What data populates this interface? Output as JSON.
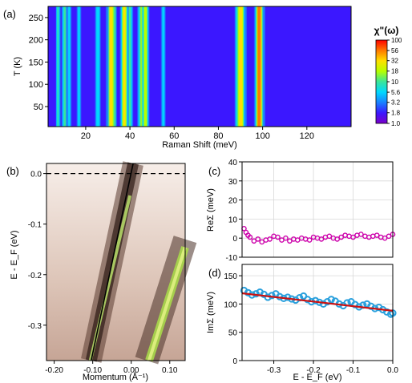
{
  "chart_data": [
    {
      "panel": "(a)",
      "type": "heatmap",
      "xlabel": "Raman Shift (meV)",
      "ylabel": "T (K)",
      "xlim": [
        3,
        140
      ],
      "ylim": [
        5,
        275
      ],
      "xticks": [
        20,
        40,
        60,
        80,
        100,
        120
      ],
      "yticks": [
        50,
        100,
        150,
        200,
        250
      ],
      "colorbar": {
        "label": "χ\"(ω)",
        "scale": "log",
        "range": [
          1.0,
          100
        ],
        "ticks": [
          "100",
          "56",
          "32",
          "18",
          "10",
          "5.6",
          "3.2",
          "1.8",
          "1.0"
        ],
        "colors": [
          "#7a00c8",
          "#3b17ff",
          "#1a80ff",
          "#00d8ff",
          "#3ae59a",
          "#b6ff00",
          "#ffe000",
          "#ff7a00",
          "#ff0000"
        ]
      },
      "background_level": 2.2,
      "dip": {
        "center": 20,
        "width": 8,
        "level": 1.3
      },
      "phonon_modes_meV": [
        {
          "x": 7.5,
          "level": 9,
          "width": 0.55
        },
        {
          "x": 10.5,
          "level": 10,
          "width": 0.6
        },
        {
          "x": 12.5,
          "level": 8,
          "width": 0.55
        },
        {
          "x": 17,
          "level": 6,
          "width": 0.5
        },
        {
          "x": 25.5,
          "level": 7,
          "width": 0.55
        },
        {
          "x": 31.5,
          "level": 40,
          "width": 0.9
        },
        {
          "x": 33,
          "level": 14,
          "width": 0.6
        },
        {
          "x": 37.5,
          "level": 30,
          "width": 0.8
        },
        {
          "x": 40,
          "level": 11,
          "width": 0.6
        },
        {
          "x": 45,
          "level": 14,
          "width": 0.7
        },
        {
          "x": 47,
          "level": 22,
          "width": 0.7
        },
        {
          "x": 55,
          "level": 6,
          "width": 0.6
        },
        {
          "x": 90,
          "level": 40,
          "width": 1.1
        },
        {
          "x": 98.5,
          "level": 60,
          "width": 1.0
        }
      ]
    },
    {
      "panel": "(b)",
      "type": "heatmap",
      "xlabel": "Momentum (Å⁻¹)",
      "ylabel": "E - E_F (eV)",
      "xlim": [
        -0.22,
        0.14
      ],
      "ylim": [
        -0.37,
        0.02
      ],
      "xticks": [
        "-0.20",
        "-0.10",
        "0.00",
        "0.10"
      ],
      "yticks": [
        "0.0",
        "-0.1",
        "-0.2",
        "-0.3"
      ],
      "fermi_level_line": {
        "y": 0.0,
        "style": "dashed"
      },
      "dispersion": {
        "x": [
          -0.104,
          0.005
        ],
        "y": [
          -0.37,
          0.02
        ]
      },
      "second_band": {
        "x": [
          0.04,
          0.14
        ],
        "y": [
          -0.37,
          -0.13
        ]
      }
    },
    {
      "panel": "(c)",
      "type": "scatter",
      "ylabel": "ReΣ (meV)",
      "xlim": [
        -0.38,
        0.0
      ],
      "ylim": [
        -10,
        40
      ],
      "yticks": [
        "-10",
        "0",
        "10",
        "20",
        "30",
        "40"
      ],
      "series": [
        {
          "color": "#cc00aa",
          "x": [
            -0.375,
            -0.37,
            -0.365,
            -0.36,
            -0.35,
            -0.34,
            -0.33,
            -0.32,
            -0.31,
            -0.3,
            -0.29,
            -0.28,
            -0.27,
            -0.26,
            -0.25,
            -0.24,
            -0.23,
            -0.22,
            -0.21,
            -0.2,
            -0.19,
            -0.18,
            -0.17,
            -0.16,
            -0.15,
            -0.14,
            -0.13,
            -0.12,
            -0.11,
            -0.1,
            -0.09,
            -0.08,
            -0.07,
            -0.06,
            -0.05,
            -0.04,
            -0.03,
            -0.02,
            -0.01,
            0.0
          ],
          "y": [
            5,
            3,
            1.5,
            0.5,
            -1.5,
            -0.5,
            -2,
            -1,
            -0.5,
            1,
            0.5,
            -1,
            0,
            -1.5,
            -0.5,
            -1,
            0,
            -0.5,
            -1,
            0.5,
            0,
            -0.5,
            0.5,
            1,
            0,
            -0.5,
            0.5,
            1.5,
            1,
            0.5,
            1.5,
            2,
            1,
            0.5,
            1,
            1.5,
            0.5,
            0,
            1,
            2
          ]
        }
      ]
    },
    {
      "panel": "(d)",
      "type": "line",
      "xlabel": "E - E_F (eV)",
      "ylabel": "ImΣ (meV)",
      "xlim": [
        -0.38,
        0.0
      ],
      "ylim": [
        0,
        170
      ],
      "xticks": [
        "-0.3",
        "-0.2",
        "-0.1",
        "0.0"
      ],
      "yticks": [
        "0",
        "50",
        "100",
        "150"
      ],
      "series": [
        {
          "color": "#2aa0dd",
          "style": "markers",
          "x": [
            -0.375,
            -0.365,
            -0.355,
            -0.345,
            -0.335,
            -0.325,
            -0.315,
            -0.305,
            -0.295,
            -0.285,
            -0.275,
            -0.265,
            -0.255,
            -0.245,
            -0.235,
            -0.225,
            -0.215,
            -0.205,
            -0.195,
            -0.185,
            -0.175,
            -0.165,
            -0.155,
            -0.145,
            -0.135,
            -0.125,
            -0.115,
            -0.105,
            -0.095,
            -0.085,
            -0.075,
            -0.065,
            -0.055,
            -0.045,
            -0.035,
            -0.025,
            -0.015,
            -0.005,
            0.0
          ],
          "y": [
            124,
            120,
            116,
            118,
            121,
            117,
            112,
            115,
            118,
            113,
            110,
            112,
            109,
            107,
            111,
            114,
            108,
            104,
            106,
            103,
            100,
            104,
            108,
            105,
            100,
            97,
            102,
            104,
            99,
            95,
            98,
            100,
            96,
            92,
            94,
            90,
            86,
            82,
            84
          ]
        },
        {
          "color": "#cc1111",
          "style": "fit",
          "x": [
            -0.38,
            0.0
          ],
          "y": [
            119,
            88
          ]
        }
      ]
    }
  ]
}
